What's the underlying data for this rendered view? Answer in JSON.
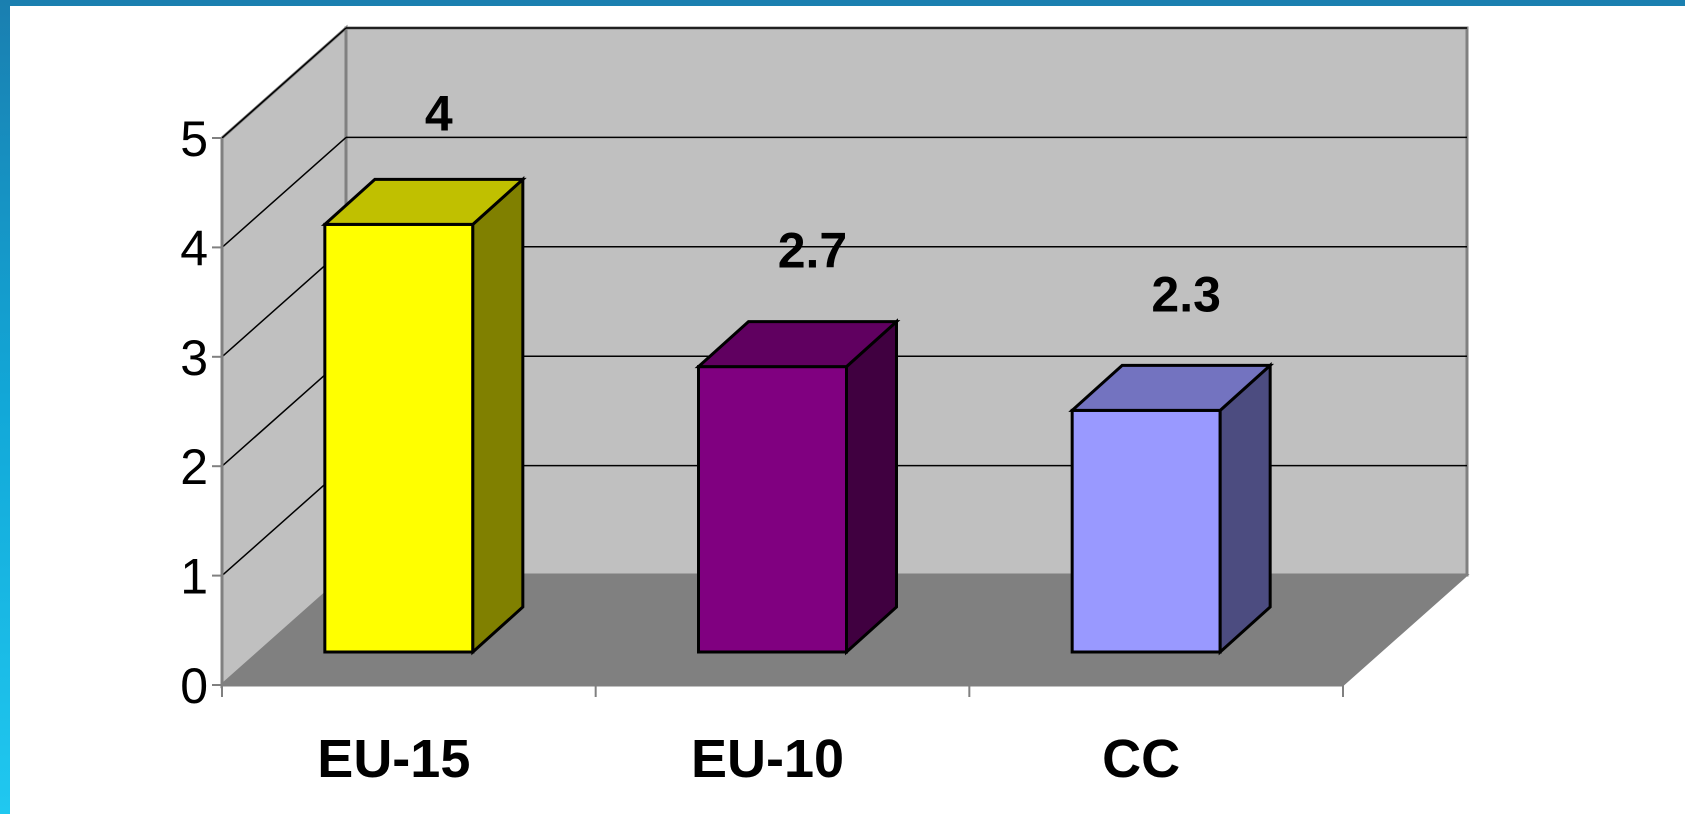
{
  "chart_data": {
    "type": "bar",
    "categories": [
      "EU-15",
      "EU-10",
      "CC"
    ],
    "values": [
      4,
      2.7,
      2.3
    ],
    "data_labels": [
      "4",
      "2.7",
      "2.3"
    ],
    "title": "",
    "xlabel": "",
    "ylabel": "",
    "ylim": [
      0,
      5
    ],
    "yticks": [
      "0",
      "1",
      "2",
      "3",
      "4",
      "5"
    ],
    "grid": true,
    "legend": "none",
    "three_d": true,
    "colors": {
      "bars": [
        {
          "front": "#ffff00",
          "side": "#808000",
          "top": "#c0c000"
        },
        {
          "front": "#800080",
          "side": "#400040",
          "top": "#600060"
        },
        {
          "front": "#9999ff",
          "side": "#4c4c80",
          "top": "#7373c0"
        }
      ],
      "back_wall": "#c0c0c0",
      "side_wall": "#c0c0c0",
      "floor": "#808080",
      "background": "#ffffff"
    }
  }
}
